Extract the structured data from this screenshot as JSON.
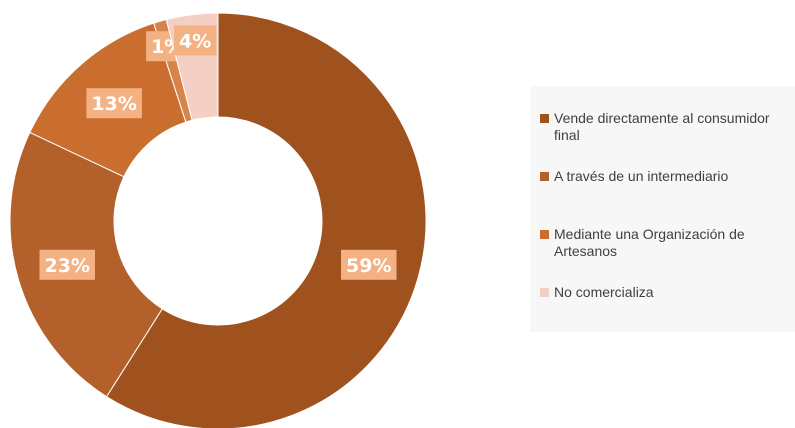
{
  "chart_data": {
    "type": "donut",
    "categories": [
      "Vende directamente al consumidor final",
      "A través de un intermediario",
      "Mediante una Organización de Artesanos",
      null,
      "No comercializa"
    ],
    "values": [
      59,
      23,
      13,
      1,
      4
    ],
    "value_labels": [
      "59%",
      "23%",
      "13%",
      "1%",
      "4%"
    ],
    "colors": [
      "#a0521e",
      "#b3602a",
      "#c96e2f",
      "#d6854a",
      "#f4cfc4"
    ],
    "legend": "right"
  }
}
